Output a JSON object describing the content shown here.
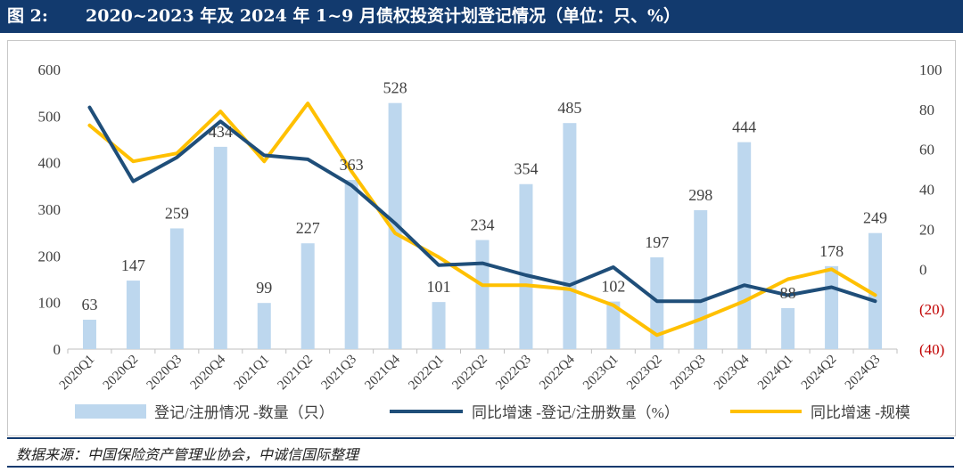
{
  "header": {
    "figure_label": "图 2:",
    "title": "2020~2023 年及 2024 年 1~9 月债权投资计划登记情况（单位：只、%）"
  },
  "source": "数据来源：中国保险资产管理业协会，中诚信国际整理",
  "colors": {
    "bar": "#bdd7ee",
    "line_count": "#1f4e79",
    "line_scale": "#ffc000",
    "negative_label": "#c00000",
    "header_bg": "#123a6e"
  },
  "chart_data": {
    "type": "bar",
    "categories": [
      "2020Q1",
      "2020Q2",
      "2020Q3",
      "2020Q4",
      "2021Q1",
      "2021Q2",
      "2021Q3",
      "2021Q4",
      "2022Q1",
      "2022Q2",
      "2022Q3",
      "2022Q4",
      "2023Q1",
      "2023Q2",
      "2023Q3",
      "2023Q4",
      "2024Q1",
      "2024Q2",
      "2024Q3"
    ],
    "y_left": {
      "min": 0,
      "max": 600,
      "ticks": [
        "0",
        "100",
        "200",
        "300",
        "400",
        "500",
        "600"
      ],
      "tick_values": [
        0,
        100,
        200,
        300,
        400,
        500,
        600
      ]
    },
    "y_right": {
      "min": -40,
      "max": 100,
      "ticks": [
        "(40)",
        "(20)",
        "0",
        "20",
        "40",
        "60",
        "80",
        "100"
      ],
      "tick_values": [
        -40,
        -20,
        0,
        20,
        40,
        60,
        80,
        100
      ]
    },
    "series": [
      {
        "name": "登记/注册情况 -数量（只）",
        "type": "bar",
        "axis": "left",
        "values": [
          63,
          147,
          259,
          434,
          99,
          227,
          363,
          528,
          101,
          234,
          354,
          485,
          102,
          197,
          298,
          444,
          88,
          178,
          249
        ],
        "labels": [
          "63",
          "147",
          "259",
          "434",
          "99",
          "227",
          "363",
          "528",
          "101",
          "234",
          "354",
          "485",
          "102",
          "197",
          "298",
          "444",
          "88",
          "178",
          "249"
        ]
      },
      {
        "name": "同比增速 -登记/注册数量（%）",
        "type": "line",
        "axis": "right",
        "values": [
          81,
          44,
          56,
          74,
          57,
          55,
          42,
          23,
          2,
          3,
          -3,
          -8,
          1,
          -16,
          -16,
          -8,
          -13,
          -9,
          -16
        ]
      },
      {
        "name": "同比增速 -规模",
        "type": "line",
        "axis": "right",
        "values": [
          72,
          54,
          58,
          79,
          54,
          83,
          49,
          18,
          6,
          -8,
          -8,
          -10,
          -18,
          -33,
          -25,
          -16,
          -5,
          0,
          -13
        ]
      }
    ],
    "legend_position": "bottom"
  }
}
